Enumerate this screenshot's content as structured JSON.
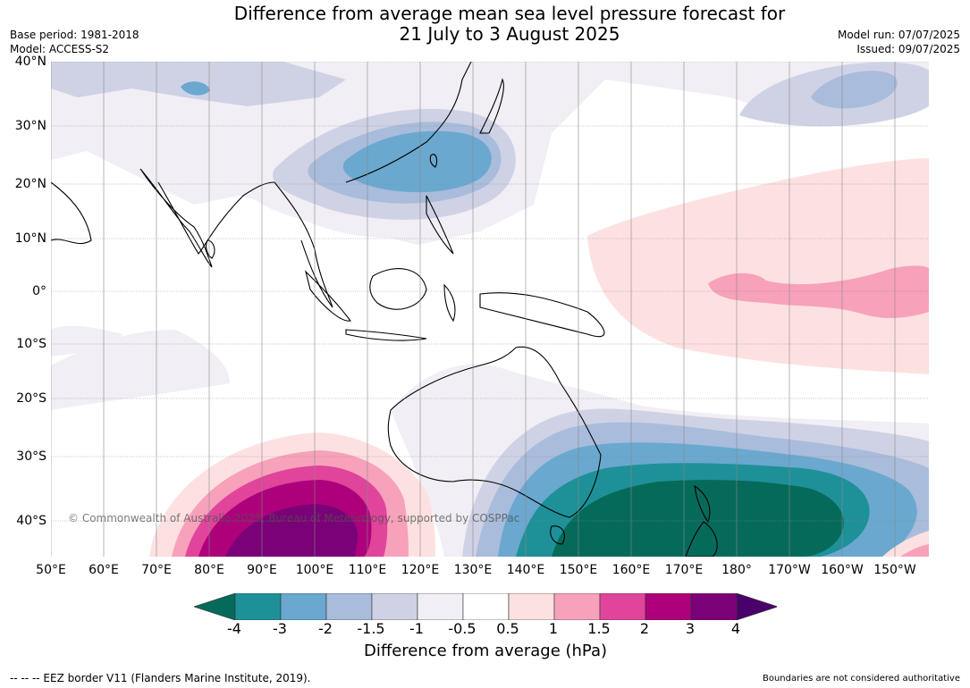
{
  "title_line1": "Difference from average mean sea level pressure forecast for",
  "title_line2": "21 July to 3 August 2025",
  "base_period": "Base period: 1981-2018",
  "model": "Model: ACCESS-S2",
  "model_run": "Model run: 07/07/2025",
  "issued": "Issued: 09/07/2025",
  "lat_labels": [
    "40°N",
    "30°N",
    "20°N",
    "10°N",
    "0°",
    "10°S",
    "20°S",
    "30°S",
    "40°S"
  ],
  "lon_labels": [
    "50°E",
    "60°E",
    "70°E",
    "80°E",
    "90°E",
    "100°E",
    "110°E",
    "120°E",
    "130°E",
    "140°E",
    "150°E",
    "160°E",
    "170°E",
    "180°",
    "170°W",
    "160°W",
    "150°W"
  ],
  "copyright": "© Commonwealth of Australia 2025, Bureau of Meteorology, supported by COSPPac",
  "colorbar": {
    "ticks": [
      "-4",
      "-3",
      "-2",
      "-1.5",
      "-1",
      "-0.5",
      "0.5",
      "1",
      "1.5",
      "2",
      "3",
      "4"
    ],
    "colors": [
      "#066a5a",
      "#1e9098",
      "#6aa8cf",
      "#a9bcdb",
      "#cfd2e5",
      "#f1eef5",
      "#ffffff",
      "#fde1e1",
      "#f7a1bb",
      "#e0449b",
      "#ad017b",
      "#7a0177",
      "#4a006a"
    ],
    "label": "Difference from average (hPa)"
  },
  "footer_left": "--  --  -- EEZ border V11 (Flanders Marine Institute, 2019).",
  "footer_right": "Boundaries are not considered authoritative"
}
